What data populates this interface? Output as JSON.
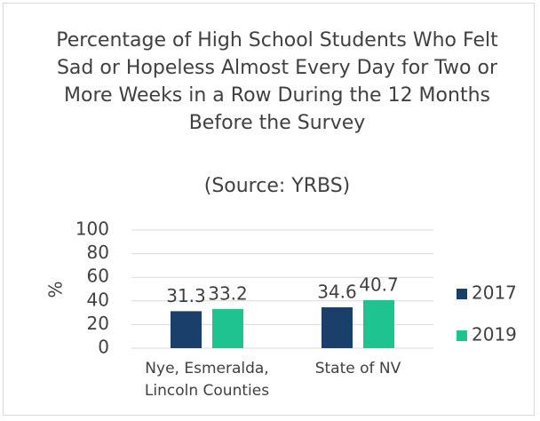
{
  "chart_data": {
    "type": "bar",
    "title": "Percentage of High School Students Who Felt Sad or Hopeless Almost Every Day for Two or More Weeks in a Row During the 12 Months Before the Survey",
    "subtitle": "(Source: YRBS)",
    "y_label": "%",
    "categories": [
      "Nye, Esmeralda, Lincoln Counties",
      "State of NV"
    ],
    "series": [
      {
        "name": "2017",
        "color": "#1b3f6b",
        "values": [
          31.3,
          34.6
        ]
      },
      {
        "name": "2019",
        "color": "#1fc38f",
        "values": [
          33.2,
          40.7
        ]
      }
    ],
    "ylim": [
      0,
      100
    ],
    "yticks": [
      0,
      20,
      40,
      60,
      80,
      100
    ],
    "grid": true,
    "legend": "right"
  }
}
